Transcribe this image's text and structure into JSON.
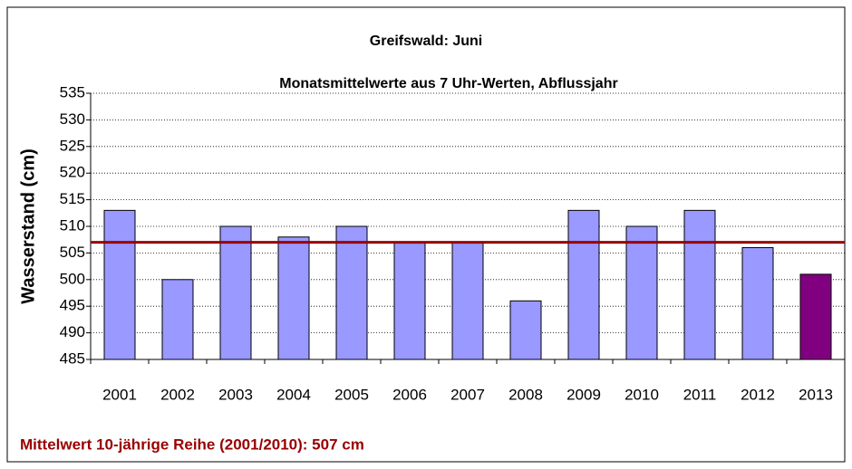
{
  "chart_data": {
    "type": "bar",
    "title": "Greifswald: Juni",
    "subtitle": "Monatsmittelwerte aus 7 Uhr-Werten, Abflussjahr",
    "y_label": "Wasserstand (cm)",
    "categories": [
      "2001",
      "2002",
      "2003",
      "2004",
      "2005",
      "2006",
      "2007",
      "2008",
      "2009",
      "2010",
      "2011",
      "2012",
      "2013"
    ],
    "values": [
      513,
      500,
      510,
      508,
      510,
      507,
      507,
      496,
      513,
      510,
      513,
      506,
      501
    ],
    "colors": [
      "#9999ff",
      "#9999ff",
      "#9999ff",
      "#9999ff",
      "#9999ff",
      "#9999ff",
      "#9999ff",
      "#9999ff",
      "#9999ff",
      "#9999ff",
      "#9999ff",
      "#9999ff",
      "#800080"
    ],
    "mean": 507,
    "mean_color": "#990000",
    "annotation": "Mittelwert 10-jährige Reihe (2001/2010): 507 cm",
    "ylim": [
      485,
      535
    ],
    "yticks": [
      485,
      490,
      495,
      500,
      505,
      510,
      515,
      520,
      525,
      530,
      535
    ],
    "grid": true
  }
}
